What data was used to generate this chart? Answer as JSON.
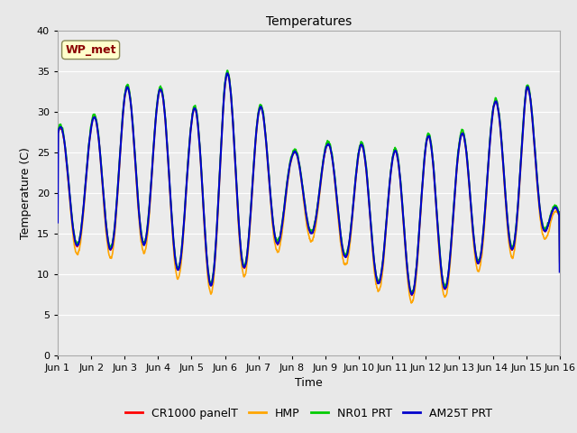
{
  "title": "Temperatures",
  "xlabel": "Time",
  "ylabel": "Temperature (C)",
  "ylim": [
    0,
    40
  ],
  "yticks": [
    0,
    5,
    10,
    15,
    20,
    25,
    30,
    35,
    40
  ],
  "xtick_labels": [
    "Jun 1",
    "Jun 2",
    "Jun 3",
    "Jun 4",
    "Jun 5",
    "Jun 6",
    "Jun 7",
    "Jun 8",
    "Jun 9",
    "Jun 10",
    "Jun 11",
    "Jun 12",
    "Jun 13",
    "Jun 14",
    "Jun 15",
    "Jun 16"
  ],
  "annotation_text": "WP_met",
  "annotation_color": "#8B0000",
  "annotation_bg": "#FFFFCC",
  "annotation_border": "#888855",
  "series": [
    {
      "label": "CR1000 panelT",
      "color": "#FF0000"
    },
    {
      "label": "HMP",
      "color": "#FFA500"
    },
    {
      "label": "NR01 PRT",
      "color": "#00CC00"
    },
    {
      "label": "AM25T PRT",
      "color": "#0000CC"
    }
  ],
  "bg_color": "#E8E8E8",
  "plot_bg_color": "#EBEBEB",
  "grid_color": "#FFFFFF",
  "title_fontsize": 10,
  "axis_fontsize": 9,
  "tick_fontsize": 8,
  "legend_fontsize": 9,
  "n_days": 15,
  "samples_per_day": 144,
  "day_peaks": [
    28,
    29,
    33,
    33,
    30,
    35,
    31,
    25,
    26,
    26,
    25,
    27,
    27,
    31,
    34,
    17
  ],
  "day_mins": [
    14,
    13,
    13,
    14,
    8,
    9,
    12,
    15,
    15,
    10,
    8,
    7,
    9,
    13,
    13,
    17
  ],
  "peak_time": 0.58,
  "min_time": 0.17
}
